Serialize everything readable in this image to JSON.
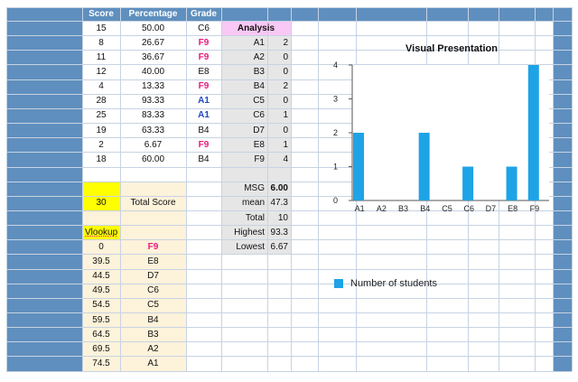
{
  "headers": {
    "score": "Score",
    "percentage": "Percentage",
    "grade": "Grade"
  },
  "rows": [
    {
      "score": "15",
      "percentage": "50.00",
      "grade": "C6",
      "style": "normal"
    },
    {
      "score": "8",
      "percentage": "26.67",
      "grade": "F9",
      "style": "pink"
    },
    {
      "score": "11",
      "percentage": "36.67",
      "grade": "F9",
      "style": "pink"
    },
    {
      "score": "12",
      "percentage": "40.00",
      "grade": "E8",
      "style": "normal"
    },
    {
      "score": "4",
      "percentage": "13.33",
      "grade": "F9",
      "style": "pink"
    },
    {
      "score": "28",
      "percentage": "93.33",
      "grade": "A1",
      "style": "blue"
    },
    {
      "score": "25",
      "percentage": "83.33",
      "grade": "A1",
      "style": "blue"
    },
    {
      "score": "19",
      "percentage": "63.33",
      "grade": "B4",
      "style": "normal"
    },
    {
      "score": "2",
      "percentage": "6.67",
      "grade": "F9",
      "style": "pink"
    },
    {
      "score": "18",
      "percentage": "60.00",
      "grade": "B4",
      "style": "normal"
    }
  ],
  "total_score": {
    "value": "30",
    "label": "Total Score"
  },
  "analysis": {
    "title": "Analysis",
    "grades": [
      {
        "grade": "A1",
        "count": "2"
      },
      {
        "grade": "A2",
        "count": "0"
      },
      {
        "grade": "B3",
        "count": "0"
      },
      {
        "grade": "B4",
        "count": "2"
      },
      {
        "grade": "C5",
        "count": "0"
      },
      {
        "grade": "C6",
        "count": "1"
      },
      {
        "grade": "D7",
        "count": "0"
      },
      {
        "grade": "E8",
        "count": "1"
      },
      {
        "grade": "F9",
        "count": "4"
      }
    ],
    "stats": [
      {
        "label": "MSG",
        "value": "6.00",
        "bold": true
      },
      {
        "label": "mean",
        "value": "47.3",
        "bold": false
      },
      {
        "label": "Total",
        "value": "10",
        "bold": false
      },
      {
        "label": "Highest",
        "value": "93.3",
        "bold": false
      },
      {
        "label": "Lowest",
        "value": "6.67",
        "bold": false
      }
    ]
  },
  "vlookup": {
    "title": "Vlookup",
    "rows": [
      {
        "min": "0",
        "grade": "F9"
      },
      {
        "min": "39.5",
        "grade": "E8"
      },
      {
        "min": "44.5",
        "grade": "D7"
      },
      {
        "min": "49.5",
        "grade": "C6"
      },
      {
        "min": "54.5",
        "grade": "C5"
      },
      {
        "min": "59.5",
        "grade": "B4"
      },
      {
        "min": "64.5",
        "grade": "B3"
      },
      {
        "min": "69.5",
        "grade": "A2"
      },
      {
        "min": "74.5",
        "grade": "A1"
      }
    ]
  },
  "colors": {
    "header_bar": "#5f8fbe",
    "grid_line": "#c7d3e3",
    "yellow": "#ffff00",
    "cream": "#fdf2da",
    "pink_header": "#f9c8f5",
    "gray_cell": "#e6e6e6",
    "bar": "#1ea3e6",
    "pink_text": "#e8197d",
    "blue_text": "#1f47c9"
  },
  "chart_data": {
    "type": "bar",
    "title": "Visual Presentation",
    "categories": [
      "A1",
      "A2",
      "B3",
      "B4",
      "C5",
      "C6",
      "D7",
      "E8",
      "F9"
    ],
    "series": [
      {
        "name": "Number of students",
        "values": [
          2,
          0,
          0,
          2,
          0,
          1,
          0,
          1,
          4
        ]
      }
    ],
    "yticks": [
      "0",
      "1",
      "2",
      "3",
      "4"
    ],
    "ylim": [
      0,
      4
    ],
    "xlabel": "",
    "ylabel": "",
    "grid": false,
    "legend": "below"
  }
}
